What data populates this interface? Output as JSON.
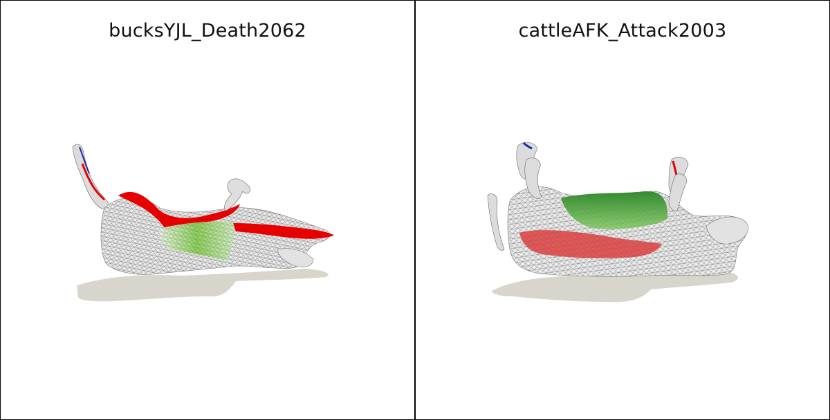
{
  "panels": [
    {
      "title": "bucksYJL_Death2062"
    },
    {
      "title": "cattleAFK_Attack2003"
    }
  ],
  "colors": {
    "background": "#ffffff",
    "border": "#000000",
    "mesh": "#d9d9d9",
    "wire": "#6b6b6b",
    "deformation_high": "#e60000",
    "deformation_mid": "#7bd245",
    "deformation_low": "#3f9a3a",
    "shadow": "#d8d5cc"
  }
}
